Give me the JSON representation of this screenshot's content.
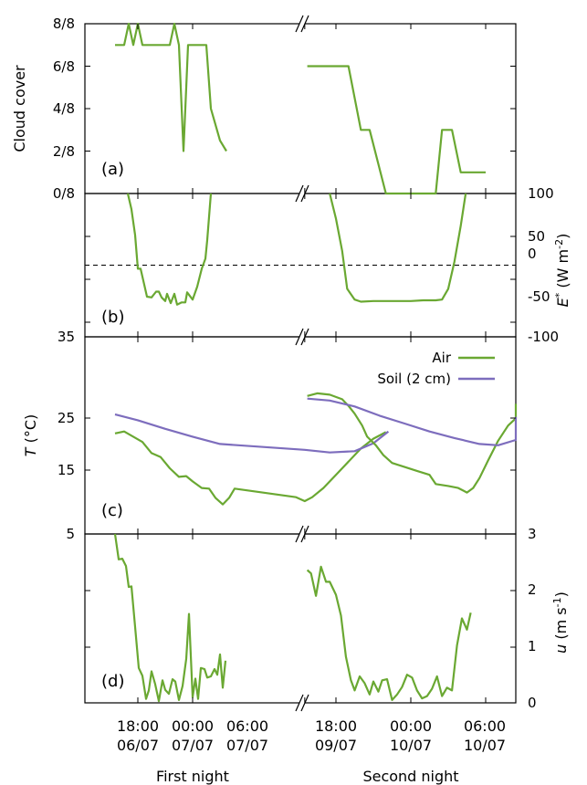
{
  "chart_data": [
    {
      "type": "line",
      "panel_label": "(a)",
      "ylabel": "Cloud cover",
      "y_ticks_left": [
        "8/8",
        "6/8",
        "4/8",
        "2/8",
        "0/8"
      ],
      "ylim": [
        0,
        8
      ],
      "series": [
        {
          "color": "#6aa832",
          "points": [
            [
              -2.5,
              7
            ],
            [
              -1.5,
              7
            ],
            [
              -1,
              8
            ],
            [
              -0.5,
              7
            ],
            [
              0,
              8
            ],
            [
              0.5,
              7
            ],
            [
              1,
              7
            ],
            [
              2,
              7
            ],
            [
              3,
              7
            ],
            [
              3.5,
              7
            ],
            [
              4,
              8
            ],
            [
              4.5,
              7
            ],
            [
              5,
              2
            ],
            [
              5.5,
              7
            ],
            [
              6,
              7
            ],
            [
              7,
              7
            ],
            [
              7.5,
              7
            ],
            [
              8,
              4
            ],
            [
              9,
              2.5
            ],
            [
              9.7,
              2
            ]
          ]
        },
        {
          "color": "#6aa832",
          "points": [
            [
              12.2,
              6
            ],
            [
              13,
              6
            ],
            [
              15,
              6
            ],
            [
              15.5,
              6
            ],
            [
              16.5,
              3
            ],
            [
              17.2,
              3
            ],
            [
              18.5,
              0
            ],
            [
              20,
              0
            ],
            [
              22.5,
              0
            ],
            [
              23,
              3
            ],
            [
              23.8,
              3
            ],
            [
              24.5,
              1
            ],
            [
              25.7,
              1
            ],
            [
              26.5,
              1
            ]
          ]
        }
      ]
    },
    {
      "type": "line",
      "panel_label": "(b)",
      "ylabel_right": "E* (W m-2)",
      "y_ticks_right": [
        "100",
        "50",
        "0",
        "-50",
        "-100"
      ],
      "ylim": [
        -100,
        100
      ],
      "reference_line": 0,
      "series": [
        {
          "color": "#6aa832",
          "points": [
            [
              -1.1,
              100
            ],
            [
              -0.7,
              78
            ],
            [
              -0.3,
              42
            ],
            [
              0,
              -5
            ],
            [
              0.3,
              -5
            ],
            [
              1,
              -44
            ],
            [
              1.5,
              -45
            ],
            [
              2,
              -37
            ],
            [
              2.3,
              -37
            ],
            [
              2.6,
              -45
            ],
            [
              3,
              -50
            ],
            [
              3.2,
              -40
            ],
            [
              3.6,
              -53
            ],
            [
              4,
              -40
            ],
            [
              4.3,
              -55
            ],
            [
              4.8,
              -52
            ],
            [
              5.2,
              -52
            ],
            [
              5.4,
              -38
            ],
            [
              6,
              -48
            ],
            [
              6.5,
              -30
            ],
            [
              7,
              -5
            ],
            [
              7.4,
              9
            ],
            [
              7.6,
              35
            ],
            [
              8,
              100
            ]
          ]
        },
        {
          "color": "#6aa832",
          "points": [
            [
              14,
              100
            ],
            [
              14.5,
              65
            ],
            [
              15,
              20
            ],
            [
              15.4,
              -33
            ],
            [
              16,
              -48
            ],
            [
              16.5,
              -51
            ],
            [
              17.5,
              -50
            ],
            [
              19,
              -50
            ],
            [
              20.5,
              -50
            ],
            [
              21.5,
              -49
            ],
            [
              22.5,
              -49
            ],
            [
              23,
              -48
            ],
            [
              23.5,
              -33
            ],
            [
              24,
              5
            ],
            [
              24.5,
              55
            ],
            [
              24.9,
              100
            ]
          ]
        }
      ]
    },
    {
      "type": "line",
      "panel_label": "(c)",
      "ylabel": "T (°C)",
      "y_ticks_left": [
        "35",
        "25",
        "15",
        "5"
      ],
      "ylim": [
        5,
        35
      ],
      "legend": [
        "Air",
        "Soil (2 cm)"
      ],
      "legend_position": "top-right",
      "series": [
        {
          "name": "Air",
          "color": "#6aa832",
          "points": [
            [
              -2.5,
              20.3
            ],
            [
              -1.5,
              20.6
            ],
            [
              -0.5,
              19.8
            ],
            [
              0.5,
              19
            ],
            [
              1.5,
              17.3
            ],
            [
              2.5,
              16.7
            ],
            [
              3.5,
              15
            ],
            [
              4.5,
              13.7
            ],
            [
              5.3,
              13.8
            ],
            [
              6,
              13
            ],
            [
              7,
              12
            ],
            [
              7.8,
              11.9
            ],
            [
              8.5,
              10.5
            ],
            [
              9.3,
              9.5
            ],
            [
              10,
              10.5
            ],
            [
              10.6,
              11.9
            ],
            [
              11.3,
              10.6
            ],
            [
              12,
              10
            ],
            [
              12.6,
              10.6
            ],
            [
              13.5,
              12
            ],
            [
              14.5,
              14
            ],
            [
              15.5,
              16
            ],
            [
              16.5,
              18
            ],
            [
              17.5,
              19.5
            ],
            [
              18.5,
              20.5
            ]
          ]
        },
        {
          "name": "Soil (2 cm)",
          "color": "#7d6dbd",
          "points": [
            [
              -2.5,
              23.2
            ],
            [
              0,
              22.3
            ],
            [
              3,
              21
            ],
            [
              6,
              19.8
            ],
            [
              9,
              18.7
            ],
            [
              12,
              17.8
            ],
            [
              14,
              17.4
            ],
            [
              16,
              17.6
            ],
            [
              17.5,
              18.8
            ],
            [
              18.7,
              20.6
            ]
          ]
        },
        {
          "name": "Air",
          "color": "#6aa832",
          "points": [
            [
              12.2,
              26
            ],
            [
              13,
              26.4
            ],
            [
              14,
              26.2
            ],
            [
              15,
              25.5
            ],
            [
              15.5,
              24.5
            ],
            [
              16,
              23.3
            ],
            [
              16.6,
              21.5
            ],
            [
              17,
              19.8
            ],
            [
              17.7,
              18.5
            ],
            [
              18.3,
              17
            ],
            [
              19,
              15.8
            ],
            [
              20,
              15.2
            ],
            [
              21,
              14.6
            ],
            [
              22,
              14
            ],
            [
              22.5,
              12.6
            ],
            [
              23.5,
              12.3
            ],
            [
              24.3,
              12
            ],
            [
              25,
              11.3
            ],
            [
              25.5,
              12
            ],
            [
              26,
              13.5
            ],
            [
              26.7,
              16.2
            ],
            [
              27.5,
              19.2
            ],
            [
              28.3,
              21.5
            ],
            [
              29,
              22.6
            ],
            [
              29.5,
              23.5
            ],
            [
              30.5,
              24.8
            ]
          ]
        },
        {
          "name": "Soil (2 cm)",
          "color": "#7d6dbd",
          "points": [
            [
              12.2,
              25.6
            ],
            [
              14,
              25.3
            ],
            [
              16,
              24.4
            ],
            [
              18,
              23
            ],
            [
              20,
              21.8
            ],
            [
              22,
              20.6
            ],
            [
              24,
              19.6
            ],
            [
              26,
              18.7
            ],
            [
              27.5,
              18.5
            ],
            [
              29,
              19.3
            ],
            [
              30.5,
              22.8
            ]
          ]
        }
      ]
    },
    {
      "type": "line",
      "panel_label": "(d)",
      "ylabel_right": "u (m s-1)",
      "y_ticks_left": [
        "5"
      ],
      "y_ticks_right": [
        "3",
        "2",
        "1",
        "0"
      ],
      "ylim": [
        0,
        3
      ],
      "series": [
        {
          "color": "#6aa832",
          "points": [
            [
              -2.5,
              3
            ],
            [
              -2.1,
              2.55
            ],
            [
              -1.7,
              2.56
            ],
            [
              -1.3,
              2.43
            ],
            [
              -1,
              2.06
            ],
            [
              -0.7,
              2.07
            ],
            [
              -0.3,
              1.35
            ],
            [
              0.1,
              0.62
            ],
            [
              0.5,
              0.48
            ],
            [
              0.9,
              0.07
            ],
            [
              1.2,
              0.22
            ],
            [
              1.5,
              0.56
            ],
            [
              1.9,
              0.33
            ],
            [
              2.3,
              0.03
            ],
            [
              2.7,
              0.4
            ],
            [
              3,
              0.23
            ],
            [
              3.4,
              0.16
            ],
            [
              3.8,
              0.42
            ],
            [
              4.1,
              0.38
            ],
            [
              4.5,
              0.05
            ],
            [
              4.9,
              0.3
            ],
            [
              5.3,
              0.78
            ],
            [
              5.6,
              1.58
            ],
            [
              6,
              0.1
            ],
            [
              6.3,
              0.43
            ],
            [
              6.6,
              0.07
            ],
            [
              6.9,
              0.62
            ],
            [
              7.3,
              0.6
            ],
            [
              7.6,
              0.45
            ],
            [
              8,
              0.47
            ],
            [
              8.4,
              0.6
            ],
            [
              8.7,
              0.5
            ],
            [
              9,
              0.86
            ],
            [
              9.3,
              0.27
            ],
            [
              9.6,
              0.75
            ]
          ]
        },
        {
          "color": "#6aa832",
          "points": [
            [
              12.2,
              2.36
            ],
            [
              12.5,
              2.3
            ],
            [
              12.9,
              1.9
            ],
            [
              13.3,
              2.42
            ],
            [
              13.7,
              2.15
            ],
            [
              14,
              2.15
            ],
            [
              14.5,
              1.92
            ],
            [
              14.9,
              1.55
            ],
            [
              15.3,
              0.82
            ],
            [
              15.7,
              0.4
            ],
            [
              16,
              0.22
            ],
            [
              16.4,
              0.47
            ],
            [
              16.8,
              0.35
            ],
            [
              17.2,
              0.15
            ],
            [
              17.5,
              0.38
            ],
            [
              17.9,
              0.2
            ],
            [
              18.2,
              0.4
            ],
            [
              18.6,
              0.42
            ],
            [
              19,
              0.05
            ],
            [
              19.4,
              0.15
            ],
            [
              19.8,
              0.28
            ],
            [
              20.2,
              0.5
            ],
            [
              20.6,
              0.45
            ],
            [
              21,
              0.22
            ],
            [
              21.4,
              0.08
            ],
            [
              21.8,
              0.12
            ],
            [
              22.2,
              0.25
            ],
            [
              22.6,
              0.47
            ],
            [
              23,
              0.12
            ],
            [
              23.4,
              0.27
            ],
            [
              23.8,
              0.22
            ],
            [
              24.2,
              1.02
            ],
            [
              24.6,
              1.5
            ],
            [
              25,
              1.3
            ],
            [
              25.3,
              1.6
            ]
          ]
        }
      ]
    }
  ],
  "x_axis": {
    "first_segment_ticks": [
      {
        "x": 0,
        "time": "18:00",
        "date": "06/07"
      },
      {
        "x": 6,
        "time": "00:00",
        "date": "07/07"
      },
      {
        "x": 12,
        "time": "06:00",
        "date": "07/07"
      }
    ],
    "second_segment_ticks": [
      {
        "x": 14.5,
        "time": "18:00",
        "date": "09/07"
      },
      {
        "x": 20.5,
        "time": "00:00",
        "date": "10/07"
      },
      {
        "x": 26.5,
        "time": "06:00",
        "date": "10/07"
      }
    ],
    "segment_labels": [
      "First night",
      "Second night"
    ]
  },
  "colors": {
    "air": "#6aa832",
    "soil": "#7d6dbd"
  }
}
